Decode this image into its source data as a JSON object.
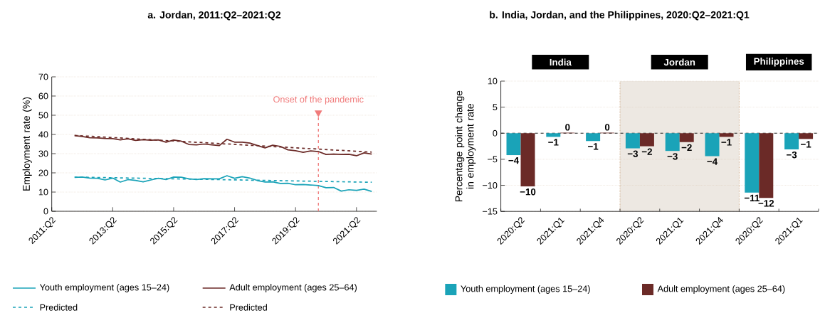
{
  "chart_data": [
    {
      "type": "line",
      "title": "a. Jordan, 2011:Q2–2021:Q2",
      "ylabel": "Employment rate (%)",
      "x": [
        "2012-01",
        "2012-04",
        "2012-07",
        "2012-10",
        "2013-01",
        "2013-04",
        "2013-07",
        "2013-10",
        "2014-01",
        "2014-04",
        "2014-07",
        "2014-10",
        "2015-01",
        "2015-04",
        "2015-07",
        "2015-10",
        "2016-01",
        "2016-04",
        "2016-07",
        "2016-10",
        "2017-01",
        "2017-04",
        "2017-07",
        "2017-10",
        "2018-01",
        "2018-04",
        "2018-07",
        "2018-10",
        "2019-01",
        "2019-04",
        "2019-07",
        "2019-10",
        "2020-01",
        "2020-04",
        "2020-07",
        "2020-10",
        "2021-01",
        "2021-04",
        "2021-07",
        "2021-10"
      ],
      "series": [
        {
          "name": "Youth employment (ages 15–24)",
          "color": "#1aa3b8",
          "line_style": "solid",
          "values": [
            17.6,
            17.8,
            17.3,
            17.2,
            16.3,
            17.3,
            15.2,
            16.5,
            16.1,
            15.3,
            16.3,
            17.2,
            16.5,
            17.8,
            17.7,
            16.9,
            16.5,
            17.0,
            16.9,
            16.9,
            18.5,
            17.2,
            18.0,
            17.3,
            16.0,
            15.2,
            15.3,
            14.5,
            14.6,
            13.8,
            13.9,
            13.7,
            13.4,
            12.3,
            12.4,
            10.5,
            11.2,
            10.9,
            11.5,
            10.3
          ]
        },
        {
          "name": "Adult employment (ages 25–64)",
          "color": "#6b2a27",
          "line_style": "solid",
          "values": [
            39.4,
            38.9,
            38.3,
            38.2,
            37.9,
            37.8,
            37.2,
            37.7,
            36.9,
            37.3,
            37.0,
            37.2,
            36.0,
            37.1,
            36.5,
            34.8,
            34.6,
            35.0,
            34.6,
            34.2,
            37.5,
            36.0,
            36.0,
            35.5,
            34.2,
            33.0,
            34.4,
            33.8,
            32.0,
            31.5,
            30.7,
            31.4,
            31.1,
            29.6,
            29.8,
            29.6,
            29.7,
            28.9,
            30.4,
            29.8
          ]
        },
        {
          "name": "Predicted",
          "color": "#1aa3b8",
          "line_style": "dashed",
          "x": [
            "2012-01",
            "2021-10"
          ],
          "values": [
            17.8,
            15.1
          ]
        },
        {
          "name": "Predicted",
          "color": "#6b2a27",
          "line_style": "dashed",
          "x": [
            "2012-01",
            "2021-10"
          ],
          "values": [
            39.5,
            30.8
          ]
        }
      ],
      "xlim": [
        "2011-04",
        "2021-12"
      ],
      "xticks": [
        {
          "value": "2011-04",
          "label": "2011:Q2"
        },
        {
          "value": "2013-04",
          "label": "2013:Q2"
        },
        {
          "value": "2015-04",
          "label": "2015:Q2"
        },
        {
          "value": "2017-04",
          "label": "2017:Q2"
        },
        {
          "value": "2019-04",
          "label": "2019:Q2"
        },
        {
          "value": "2021-04",
          "label": "2021:Q2"
        }
      ],
      "ylim": [
        0,
        70
      ],
      "yticks": [
        0,
        10,
        20,
        30,
        40,
        50,
        60,
        70
      ],
      "grid": "y",
      "legend": "bottom",
      "ref_lines": [
        {
          "axis": "x",
          "value": "2020-01",
          "label": "Onset of the pandemic",
          "color": "#f07b7b",
          "line_style": "dashed"
        }
      ]
    },
    {
      "type": "bar",
      "title": "b. India, Jordan, and the Philippines, 2020:Q2–2021:Q1",
      "ylabel": "Percentage point change in employment rate",
      "categories": [
        "2020:Q2",
        "2021:Q1",
        "2021:Q4",
        "2020:Q2",
        "2021:Q1",
        "2021:Q4",
        "2020:Q2",
        "2021:Q1"
      ],
      "series": [
        {
          "name": "Youth employment (ages 15–24)",
          "color": "#1aa3b8",
          "values": [
            -4.2,
            -0.7,
            -1.5,
            -2.9,
            -3.4,
            -4.4,
            -11.4,
            -3.1
          ],
          "value_labels": [
            "−4",
            "−1",
            "−1",
            "−3",
            "−3",
            "−4",
            "−11",
            "−3"
          ]
        },
        {
          "name": "Adult employment (ages 25–64)",
          "color": "#6b2a27",
          "values": [
            -10.2,
            0.1,
            0.1,
            -2.5,
            -1.7,
            -0.7,
            -12.4,
            -1.1
          ],
          "value_labels": [
            "−10",
            "0",
            "0",
            "−2",
            "−2",
            "−1",
            "−12",
            "−1"
          ]
        }
      ],
      "ylim": [
        -15,
        10
      ],
      "yticks": [
        {
          "value": -15,
          "label": "−15"
        },
        {
          "value": -10,
          "label": "−10"
        },
        {
          "value": -5,
          "label": "−5"
        },
        0,
        5,
        10
      ],
      "grid": "y",
      "legend": "bottom",
      "annotations": [
        "India",
        "Jordan",
        "Philippines"
      ],
      "ref_lines": [
        {
          "axis": "y",
          "value": 0,
          "color": "#222222",
          "line_style": "dashed"
        }
      ]
    }
  ]
}
